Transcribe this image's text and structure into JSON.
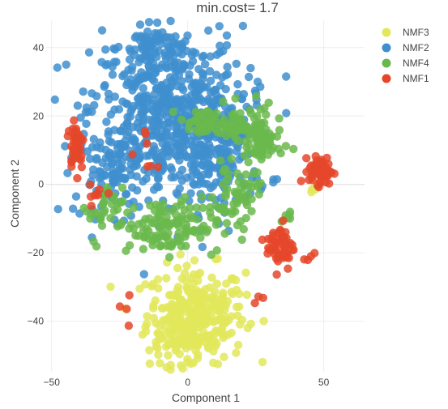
{
  "chart_data": {
    "type": "scatter",
    "title": "min.cost= 1.7",
    "xlabel": "Component 1",
    "ylabel": "Component 2",
    "xlim": [
      -52,
      65
    ],
    "ylim": [
      -55,
      48
    ],
    "x_ticks": [
      -50,
      0,
      50
    ],
    "y_ticks": [
      -40,
      -20,
      0,
      20,
      40
    ],
    "x_tick_labels": [
      "−50",
      "0",
      "50"
    ],
    "y_tick_labels": [
      "−40",
      "−20",
      "0",
      "20",
      "40"
    ],
    "grid": true,
    "legend_position": "top-right",
    "series": [
      {
        "name": "NMF3",
        "color": "#e2e85a",
        "clusters": [
          {
            "cx": 3,
            "cy": -38,
            "sx": 9,
            "sy": 7,
            "n": 280
          },
          {
            "cx": -2,
            "cy": -45,
            "sx": 6,
            "sy": 4,
            "n": 60
          },
          {
            "cx": 46,
            "cy": -1,
            "sx": 1.2,
            "sy": 1.2,
            "n": 6
          }
        ]
      },
      {
        "name": "NMF2",
        "color": "#3f8fcf",
        "clusters": [
          {
            "cx": -8,
            "cy": 22,
            "sx": 14,
            "sy": 12,
            "n": 500
          },
          {
            "cx": 10,
            "cy": 10,
            "sx": 10,
            "sy": 9,
            "n": 220
          },
          {
            "cx": -25,
            "cy": 5,
            "sx": 8,
            "sy": 7,
            "n": 120
          },
          {
            "cx": -12,
            "cy": 40,
            "sx": 5,
            "sy": 3,
            "n": 50
          }
        ]
      },
      {
        "name": "NMF4",
        "color": "#6ab84c",
        "clusters": [
          {
            "cx": 20,
            "cy": 17,
            "sx": 6,
            "sy": 3,
            "n": 60
          },
          {
            "cx": 27,
            "cy": 12,
            "sx": 4,
            "sy": 4,
            "n": 60
          },
          {
            "cx": 18,
            "cy": -3,
            "sx": 4,
            "sy": 4,
            "n": 50
          },
          {
            "cx": -8,
            "cy": -12,
            "sx": 10,
            "sy": 4,
            "n": 130
          },
          {
            "cx": -30,
            "cy": -7,
            "sx": 3,
            "sy": 3,
            "n": 25
          },
          {
            "cx": 5,
            "cy": 18,
            "sx": 4,
            "sy": 2,
            "n": 35
          },
          {
            "cx": 37,
            "cy": -8,
            "sx": 1.5,
            "sy": 2,
            "n": 6
          }
        ]
      },
      {
        "name": "NMF1",
        "color": "#e5462a",
        "clusters": [
          {
            "cx": 49,
            "cy": 4,
            "sx": 2.2,
            "sy": 2,
            "n": 60
          },
          {
            "cx": 34,
            "cy": -18,
            "sx": 2.5,
            "sy": 3.5,
            "n": 55
          },
          {
            "cx": -41,
            "cy": 12,
            "sx": 1.5,
            "sy": 4,
            "n": 40
          },
          {
            "cx": -32,
            "cy": -3,
            "sx": 2,
            "sy": 1.5,
            "n": 8
          },
          {
            "cx": -14,
            "cy": 8,
            "sx": 5,
            "sy": 5,
            "n": 7
          },
          {
            "cx": 45,
            "cy": -22,
            "sx": 1.5,
            "sy": 1.5,
            "n": 4
          },
          {
            "cx": 26,
            "cy": -33,
            "sx": 0.8,
            "sy": 0.8,
            "n": 3
          },
          {
            "cx": -20,
            "cy": -37,
            "sx": 4,
            "sy": 4,
            "n": 4
          }
        ]
      }
    ]
  }
}
